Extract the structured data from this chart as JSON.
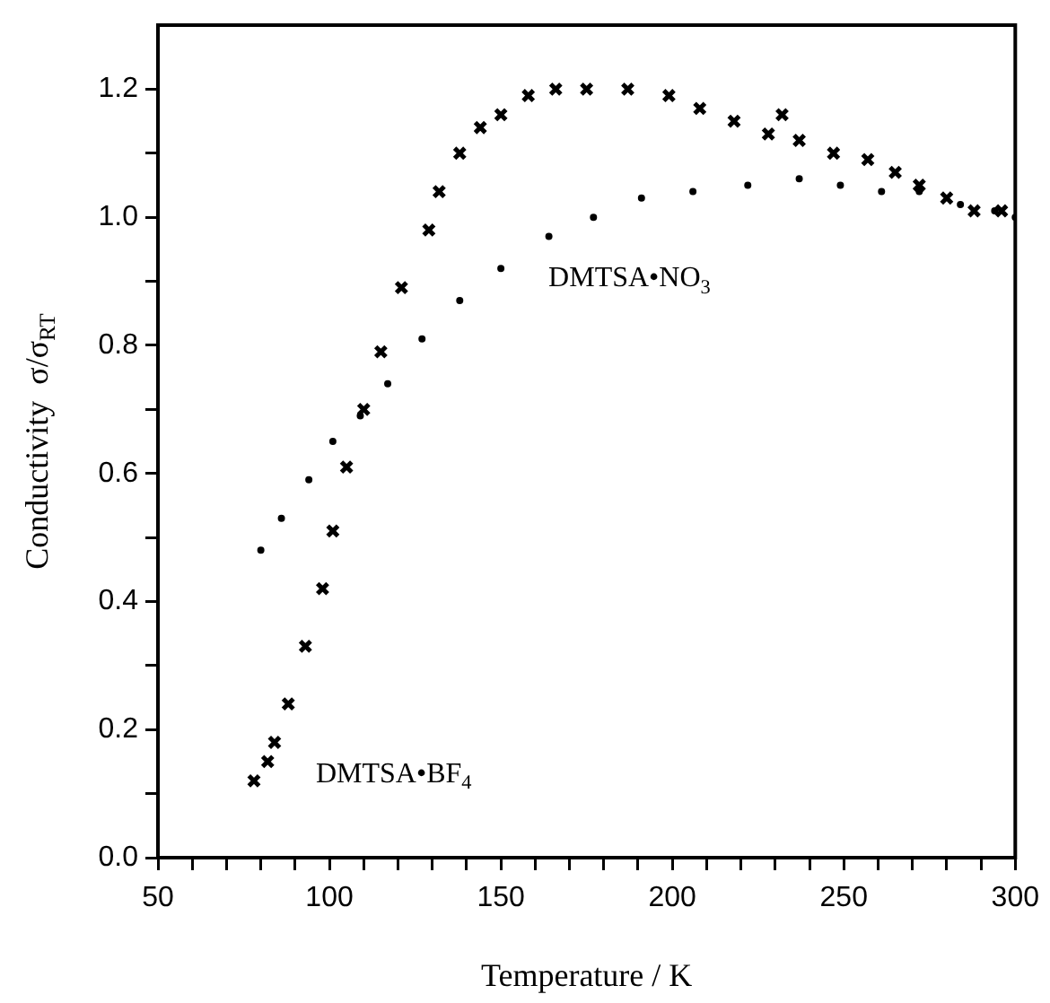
{
  "chart_data": {
    "type": "scatter",
    "xlabel": "Temperature / K",
    "ylabel": "Conductivity  σ/σ$_{RT}$",
    "xlim": [
      50,
      300
    ],
    "xticks": [
      50,
      {
        "value": 60,
        "label": null
      },
      {
        "value": 70,
        "label": null
      },
      {
        "value": 80,
        "label": null
      },
      {
        "value": 90,
        "label": null
      },
      100,
      {
        "value": 110,
        "label": null
      },
      {
        "value": 120,
        "label": null
      },
      {
        "value": 130,
        "label": null
      },
      {
        "value": 140,
        "label": null
      },
      150,
      {
        "value": 160,
        "label": null
      },
      {
        "value": 170,
        "label": null
      },
      {
        "value": 180,
        "label": null
      },
      {
        "value": 190,
        "label": null
      },
      200,
      {
        "value": 210,
        "label": null
      },
      {
        "value": 220,
        "label": null
      },
      {
        "value": 230,
        "label": null
      },
      {
        "value": 240,
        "label": null
      },
      250,
      {
        "value": 260,
        "label": null
      },
      {
        "value": 270,
        "label": null
      },
      {
        "value": 280,
        "label": null
      },
      {
        "value": 290,
        "label": null
      },
      300
    ],
    "ylim": [
      0,
      1.3
    ],
    "yticks": [
      {
        "value": 0,
        "label": "0.0"
      },
      {
        "value": 0.1,
        "label": null
      },
      0.2,
      {
        "value": 0.3,
        "label": null
      },
      0.4,
      {
        "value": 0.5,
        "label": null
      },
      0.6,
      {
        "value": 0.7,
        "label": null
      },
      0.8,
      {
        "value": 0.9,
        "label": null
      },
      {
        "value": 1,
        "label": "1.0"
      },
      {
        "value": 1.1,
        "label": null
      },
      1.2
    ],
    "grid": false,
    "legend": false,
    "series": [
      {
        "color": "#000000",
        "marker": "cross",
        "x": [
          78,
          82,
          84,
          88,
          93,
          98,
          101,
          105,
          110,
          115,
          121,
          129,
          132,
          138,
          144,
          150,
          158,
          166,
          175,
          187,
          199,
          208,
          218,
          228,
          232,
          237,
          247,
          257,
          265,
          272,
          280,
          288,
          296
        ],
        "values": [
          0.12,
          0.15,
          0.18,
          0.24,
          0.33,
          0.42,
          0.51,
          0.61,
          0.7,
          0.79,
          0.89,
          0.98,
          1.04,
          1.1,
          1.14,
          1.16,
          1.19,
          1.2,
          1.2,
          1.2,
          1.19,
          1.17,
          1.15,
          1.13,
          1.16,
          1.12,
          1.1,
          1.09,
          1.07,
          1.05,
          1.03,
          1.01,
          1.01
        ]
      },
      {
        "color": "#000000",
        "marker": "circle",
        "x": [
          80,
          86,
          94,
          101,
          109,
          117,
          127,
          138,
          150,
          164,
          177,
          191,
          206,
          222,
          237,
          249,
          261,
          272,
          284,
          294,
          300
        ],
        "values": [
          0.48,
          0.53,
          0.59,
          0.65,
          0.69,
          0.74,
          0.81,
          0.87,
          0.92,
          0.97,
          1.0,
          1.03,
          1.04,
          1.05,
          1.06,
          1.05,
          1.04,
          1.04,
          1.02,
          1.01,
          1.0
        ]
      }
    ],
    "annotations": [
      "DMTSA•NO$_{3}$",
      "DMTSA•BF$_{4}$"
    ]
  }
}
